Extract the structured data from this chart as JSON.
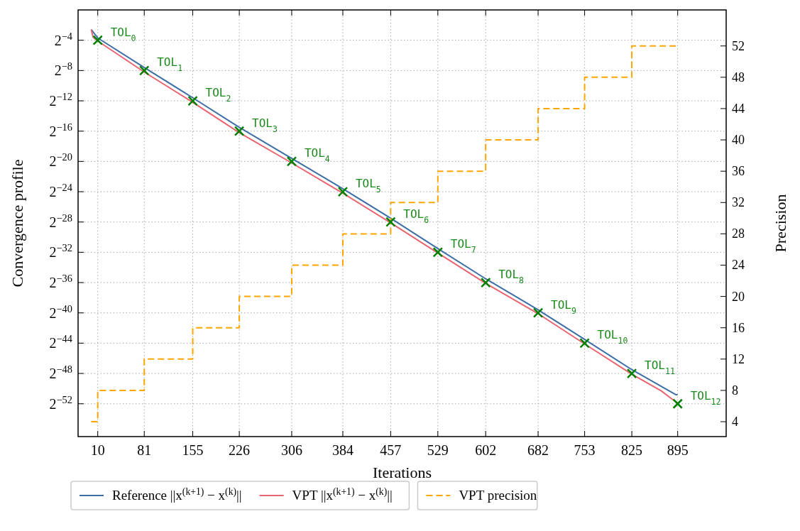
{
  "chart_data": {
    "type": "line",
    "xlabel": "Iterations",
    "ylabel": "Convergence profile",
    "y2label": "Precision",
    "log": "y",
    "grid": true,
    "legend": "bottom",
    "xlim": [
      -20,
      969
    ],
    "xticks": [
      10,
      81,
      155,
      226,
      306,
      384,
      457,
      529,
      602,
      682,
      753,
      825,
      895
    ],
    "ylim": [
      1.1e-17,
      1
    ],
    "yticks": [
      {
        "value": 0.0625,
        "label": "2$^{−4}$"
      },
      {
        "value": 0.00390625,
        "label": "2$^{−8}$"
      },
      {
        "value": 0.000244140625,
        "label": "2$^{−12}$"
      },
      {
        "value": 1.52587890625e-05,
        "label": "2$^{−16}$"
      },
      {
        "value": 9.5367431640625e-07,
        "label": "2$^{−20}$"
      },
      {
        "value": 5.960464477539063e-08,
        "label": "2$^{−24}$"
      },
      {
        "value": 3.725290298461914e-09,
        "label": "2$^{−28}$"
      },
      {
        "value": 2.3283064365386963e-10,
        "label": "2$^{−32}$"
      },
      {
        "value": 1.4551915228366852e-11,
        "label": "2$^{−36}$"
      },
      {
        "value": 9.094947017729282e-13,
        "label": "2$^{−40}$"
      },
      {
        "value": 5.684341886080802e-14,
        "label": "2$^{−44}$"
      },
      {
        "value": 3.552713678800501e-15,
        "label": "2$^{−48}$"
      },
      {
        "value": 2.220446049250313e-16,
        "label": "2$^{−52}$"
      }
    ],
    "y2lim": [
      2.1,
      56.6
    ],
    "y2ticks": [
      4,
      8,
      12,
      16,
      20,
      24,
      28,
      32,
      36,
      40,
      44,
      48,
      52
    ],
    "series": [
      {
        "name": "Reference ||x$^{(k+1)}$ − x$^{(k)}$||",
        "color": "#3d6fa6",
        "x": [
          0,
          10,
          81,
          155,
          226,
          306,
          384,
          457,
          529,
          602,
          682,
          753,
          825,
          892,
          895
        ],
        "values": [
          0.1649,
          0.07694,
          0.005154,
          0.00032215,
          2.1579e-05,
          1.2584e-06,
          7.865e-08,
          5.268e-09,
          3.2927e-10,
          2.058e-11,
          1.2001e-12,
          8.039e-14,
          5.0243e-15,
          5.1013e-16,
          5.1013e-16
        ]
      },
      {
        "name": "VPT ||x$^{(k+1)}$ − x$^{(k)}$||",
        "color": "#e8646f",
        "x": [
          0,
          3,
          10,
          81,
          155,
          226,
          306,
          384,
          457,
          529,
          602,
          682,
          753,
          825,
          870,
          885,
          895
        ],
        "values": [
          0.1649,
          0.08246,
          0.05831,
          0.0034006,
          0.00021254,
          1.3284e-05,
          8.302e-07,
          5.189e-08,
          3.4758e-09,
          2.1724e-10,
          1.3577e-11,
          8.486e-13,
          5.3036e-14,
          3.3148e-15,
          7.2142e-16,
          3.6071e-16,
          2.3798e-16
        ]
      },
      {
        "name": "VPT precision",
        "type": "step",
        "axis": "y2",
        "color": "#ffa500",
        "line_style": "dashed",
        "x": [
          0,
          10,
          81,
          155,
          226,
          306,
          384,
          457,
          529,
          602,
          682,
          753,
          825,
          895
        ],
        "values": [
          4,
          8,
          12,
          16,
          20,
          24,
          28,
          32,
          36,
          40,
          44,
          48,
          52,
          52
        ]
      },
      {
        "type": "scatter",
        "marker": "cross",
        "color": "#008000",
        "x": [
          10,
          81,
          155,
          226,
          306,
          384,
          457,
          529,
          602,
          682,
          753,
          825,
          895
        ],
        "values": [
          0.0625,
          0.00390625,
          0.000244140625,
          1.52587890625e-05,
          9.5367431640625e-07,
          5.960464477539063e-08,
          3.725290298461914e-09,
          2.3283064365386963e-10,
          1.4551915228366852e-11,
          9.094947017729282e-13,
          5.684341886080802e-14,
          3.552713678800501e-15,
          2.220446049250313e-16
        ]
      }
    ],
    "annotations": [
      {
        "text": "TOL$_{0}$",
        "x": 10,
        "y": 0.0625
      },
      {
        "text": "TOL$_{1}$",
        "x": 81,
        "y": 0.00390625
      },
      {
        "text": "TOL$_{2}$",
        "x": 155,
        "y": 0.000244140625
      },
      {
        "text": "TOL$_{3}$",
        "x": 226,
        "y": 1.52587890625e-05
      },
      {
        "text": "TOL$_{4}$",
        "x": 306,
        "y": 9.5367431640625e-07
      },
      {
        "text": "TOL$_{5}$",
        "x": 384,
        "y": 5.960464477539063e-08
      },
      {
        "text": "TOL$_{6}$",
        "x": 457,
        "y": 3.725290298461914e-09
      },
      {
        "text": "TOL$_{7}$",
        "x": 529,
        "y": 2.3283064365386963e-10
      },
      {
        "text": "TOL$_{8}$",
        "x": 602,
        "y": 1.4551915228366852e-11
      },
      {
        "text": "TOL$_{9}$",
        "x": 682,
        "y": 9.094947017729282e-13
      },
      {
        "text": "TOL$_{10}$",
        "x": 753,
        "y": 5.684341886080802e-14
      },
      {
        "text": "TOL$_{11}$",
        "x": 825,
        "y": 3.552713678800501e-15
      },
      {
        "text": "TOL$_{12}$",
        "x": 895,
        "y": 2.220446049250313e-16
      }
    ]
  }
}
